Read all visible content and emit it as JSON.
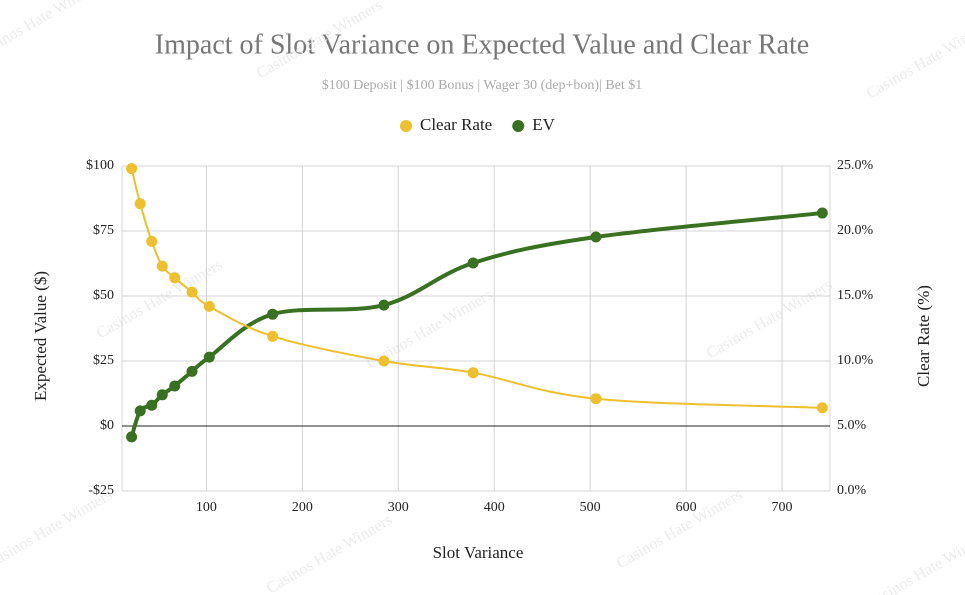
{
  "chart_data": {
    "type": "line",
    "title": "Impact of Slot Variance on Expected Value and Clear Rate",
    "subtitle": "$100 Deposit | $100 Bonus | Wager 30 (dep+bon)| Bet $1",
    "watermark": "Casinos Hate Winners",
    "x_label": "Slot Variance",
    "y_label": "Expected Value ($)",
    "y2_label": "Clear Rate (%)",
    "x": [
      22,
      31,
      43,
      54,
      67,
      85,
      103,
      169,
      285,
      378,
      506,
      742
    ],
    "series": [
      {
        "name": "Clear Rate",
        "color": "#eebf2e",
        "axis": "y2",
        "values": [
          24.8,
          22.1,
          19.2,
          17.3,
          16.4,
          15.3,
          14.2,
          11.9,
          10.0,
          9.1,
          7.1,
          6.4
        ]
      },
      {
        "name": "EV",
        "color": "#3a7021",
        "values": [
          -4.2,
          5.8,
          8,
          12,
          15.4,
          21,
          26.5,
          43,
          46.5,
          62.7,
          72.7,
          81.9
        ]
      }
    ],
    "xlim": [
      12,
      750
    ],
    "xticks": [
      100,
      200,
      300,
      400,
      500,
      600,
      700
    ],
    "ylim": [
      -25,
      100
    ],
    "yticks": [
      {
        "value": -25,
        "label": "-$25"
      },
      {
        "value": 0,
        "label": "$0"
      },
      {
        "value": 25,
        "label": "$25"
      },
      {
        "value": 50,
        "label": "$50"
      },
      {
        "value": 75,
        "label": "$75"
      },
      {
        "value": 100,
        "label": "$100"
      }
    ],
    "y2lim": [
      0,
      25
    ],
    "y2ticks": [
      {
        "value": 0,
        "label": "0.0%"
      },
      {
        "value": 5,
        "label": "5.0%"
      },
      {
        "value": 10,
        "label": "10.0%"
      },
      {
        "value": 15,
        "label": "15.0%"
      },
      {
        "value": 20,
        "label": "20.0%"
      },
      {
        "value": 25,
        "label": "25.0%"
      }
    ],
    "grid": true,
    "legend": "top"
  }
}
